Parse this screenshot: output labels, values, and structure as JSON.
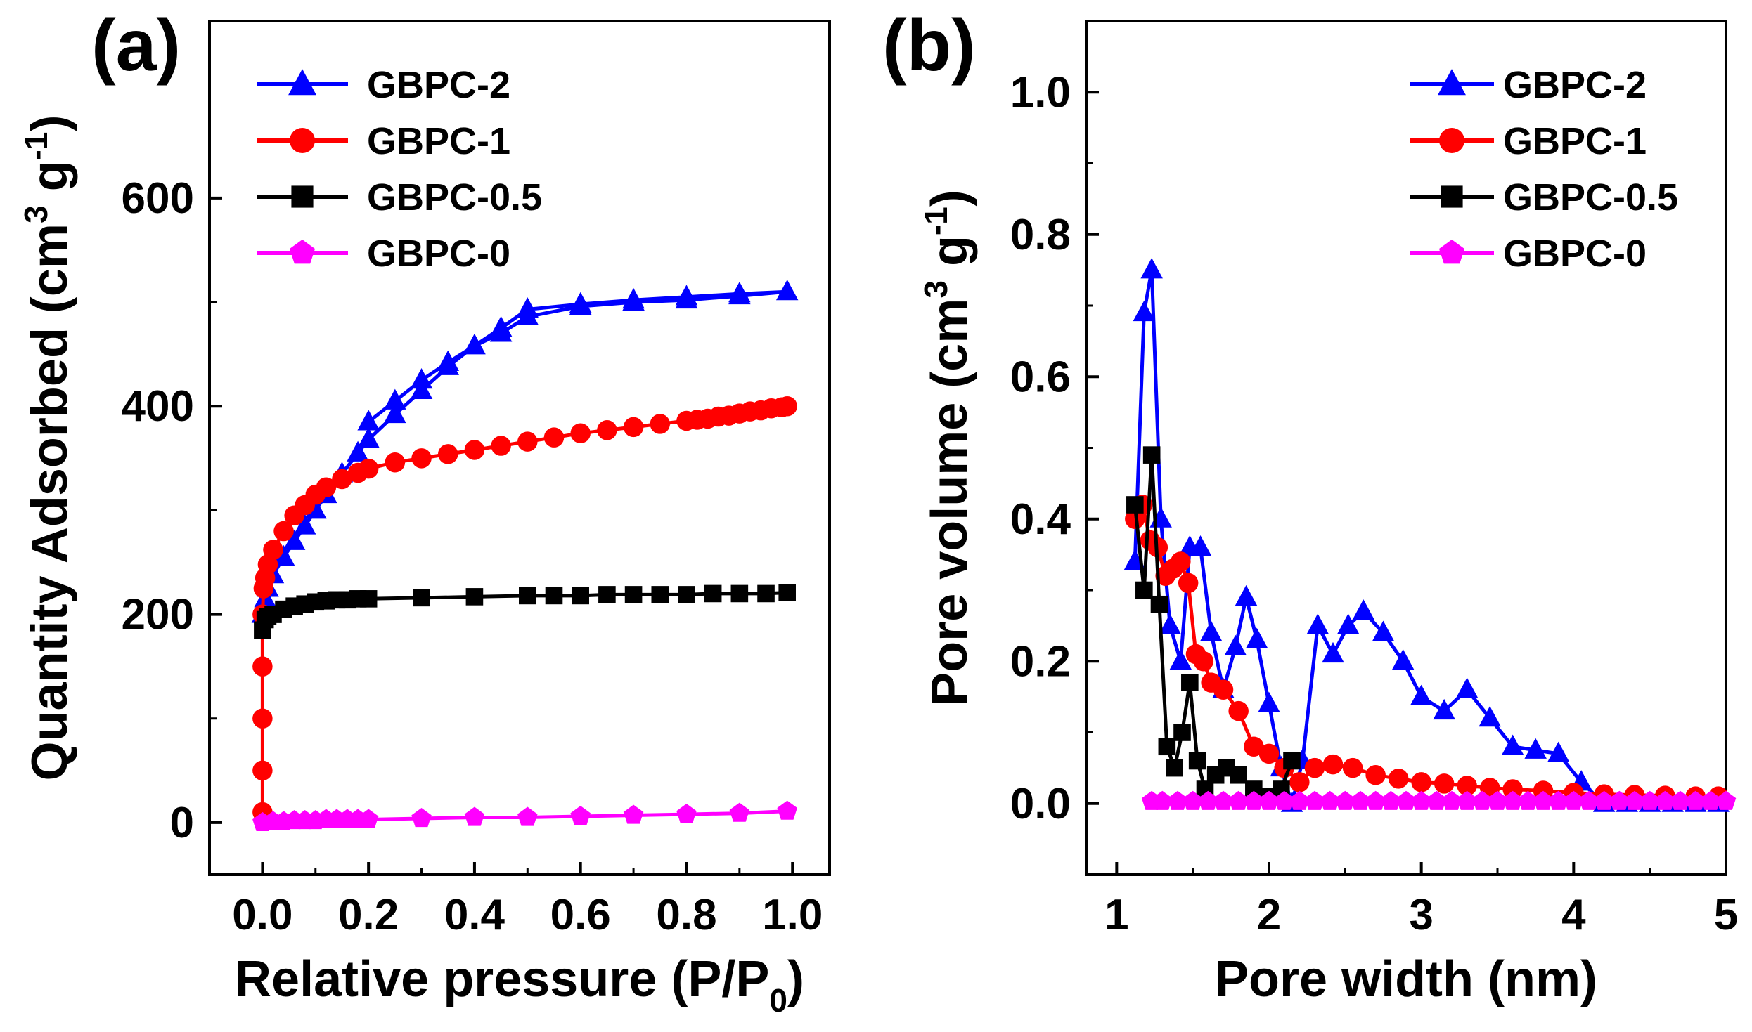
{
  "chart_data": [
    {
      "type": "line",
      "panel_label": "(a)",
      "title": "",
      "xlabel": "Relative pressure (P/P",
      "xlabel_sub": "0",
      "xlabel_end": ")",
      "ylabel": "Quantity Adsorbed (cm",
      "ylabel_sup1": "3",
      "ylabel_mid": " g",
      "ylabel_sup2": "-1",
      "ylabel_end": ")",
      "xlim": [
        -0.1,
        1.07
      ],
      "ylim": [
        -50,
        770
      ],
      "xticks": [
        0.0,
        0.2,
        0.4,
        0.6,
        0.8,
        1.0
      ],
      "xtick_labels": [
        "0.0",
        "0.2",
        "0.4",
        "0.6",
        "0.8",
        "1.0"
      ],
      "yticks": [
        0,
        200,
        400,
        600
      ],
      "ytick_labels": [
        "0",
        "200",
        "400",
        "600"
      ],
      "legend_position": "top-left",
      "series": [
        {
          "name": "GBPC-2",
          "color": "#0000ff",
          "marker": "triangle",
          "x": [
            0.0,
            0.005,
            0.01,
            0.02,
            0.04,
            0.06,
            0.08,
            0.1,
            0.12,
            0.15,
            0.18,
            0.2,
            0.25,
            0.3,
            0.35,
            0.4,
            0.45,
            0.5,
            0.6,
            0.7,
            0.8,
            0.9,
            0.99,
            0.9,
            0.8,
            0.7,
            0.6,
            0.5,
            0.45,
            0.4,
            0.35,
            0.3,
            0.25,
            0.2
          ],
          "y": [
            200,
            215,
            225,
            238,
            255,
            270,
            285,
            300,
            315,
            335,
            355,
            368,
            392,
            415,
            438,
            458,
            475,
            493,
            498,
            502,
            505,
            508,
            510,
            506,
            502,
            500,
            496,
            486,
            470,
            458,
            442,
            425,
            405,
            385
          ]
        },
        {
          "name": "GBPC-1",
          "color": "#ff0000",
          "marker": "circle",
          "x": [
            0.0,
            0.0,
            0.0,
            0.0,
            0.0,
            0.002,
            0.005,
            0.01,
            0.02,
            0.04,
            0.06,
            0.08,
            0.1,
            0.12,
            0.15,
            0.18,
            0.2,
            0.25,
            0.3,
            0.35,
            0.4,
            0.45,
            0.5,
            0.55,
            0.6,
            0.65,
            0.7,
            0.75,
            0.8,
            0.82,
            0.84,
            0.86,
            0.88,
            0.9,
            0.92,
            0.94,
            0.96,
            0.98,
            0.99
          ],
          "y": [
            10,
            50,
            100,
            150,
            200,
            225,
            235,
            248,
            262,
            280,
            295,
            305,
            315,
            322,
            330,
            336,
            340,
            346,
            350,
            354,
            358,
            362,
            366,
            370,
            374,
            377,
            380,
            383,
            386,
            387,
            388,
            390,
            391,
            393,
            395,
            396,
            398,
            399,
            400
          ]
        },
        {
          "name": "GBPC-0.5",
          "color": "#000000",
          "marker": "square",
          "x": [
            0.0,
            0.005,
            0.01,
            0.02,
            0.04,
            0.06,
            0.08,
            0.1,
            0.12,
            0.14,
            0.16,
            0.18,
            0.2,
            0.3,
            0.4,
            0.5,
            0.55,
            0.6,
            0.65,
            0.7,
            0.75,
            0.8,
            0.85,
            0.9,
            0.95,
            0.99
          ],
          "y": [
            185,
            195,
            198,
            200,
            205,
            208,
            210,
            212,
            213,
            214,
            214,
            215,
            215,
            216,
            217,
            218,
            218,
            218,
            219,
            219,
            219,
            219,
            220,
            220,
            220,
            221
          ]
        },
        {
          "name": "GBPC-0",
          "color": "#ff00ff",
          "marker": "pentagon",
          "x": [
            0.0,
            0.02,
            0.04,
            0.06,
            0.08,
            0.1,
            0.12,
            0.14,
            0.16,
            0.18,
            0.2,
            0.3,
            0.4,
            0.5,
            0.6,
            0.7,
            0.8,
            0.9,
            0.99
          ],
          "y": [
            0,
            1,
            1,
            2,
            2,
            2,
            3,
            3,
            3,
            3,
            3,
            4,
            5,
            5,
            6,
            7,
            8,
            9,
            11
          ]
        }
      ]
    },
    {
      "type": "line",
      "panel_label": "(b)",
      "title": "",
      "xlabel": "Pore width (nm)",
      "ylabel": "Pore volume (cm",
      "ylabel_sup1": "3",
      "ylabel_mid": " g",
      "ylabel_sup2": "-1",
      "ylabel_end": ")",
      "xlim": [
        0.8,
        5.0
      ],
      "ylim": [
        -0.1,
        1.1
      ],
      "xticks": [
        1,
        2,
        3,
        4,
        5
      ],
      "xtick_labels": [
        "1",
        "2",
        "3",
        "4",
        "5"
      ],
      "yticks": [
        0.0,
        0.2,
        0.4,
        0.6,
        0.8,
        1.0
      ],
      "ytick_labels": [
        "0.0",
        "0.2",
        "0.4",
        "0.6",
        "0.8",
        "1.0"
      ],
      "legend_position": "top-right",
      "series": [
        {
          "name": "GBPC-2",
          "color": "#0000ff",
          "marker": "triangle",
          "x": [
            1.12,
            1.18,
            1.23,
            1.29,
            1.35,
            1.42,
            1.48,
            1.55,
            1.62,
            1.7,
            1.78,
            1.85,
            1.92,
            2.0,
            2.08,
            2.15,
            2.22,
            2.32,
            2.42,
            2.52,
            2.62,
            2.75,
            2.88,
            3.0,
            3.15,
            3.3,
            3.45,
            3.6,
            3.75,
            3.9,
            4.05,
            4.2,
            4.35,
            4.5,
            4.65,
            4.8,
            4.95
          ],
          "y": [
            0.34,
            0.69,
            0.75,
            0.4,
            0.25,
            0.2,
            0.36,
            0.36,
            0.24,
            0.16,
            0.22,
            0.29,
            0.23,
            0.14,
            0.05,
            0.0,
            0.06,
            0.25,
            0.21,
            0.25,
            0.27,
            0.24,
            0.2,
            0.15,
            0.13,
            0.16,
            0.12,
            0.08,
            0.075,
            0.07,
            0.03,
            0.0,
            0.0,
            0.0,
            0.0,
            0.0,
            0.0
          ]
        },
        {
          "name": "GBPC-1",
          "color": "#ff0000",
          "marker": "circle",
          "x": [
            1.12,
            1.17,
            1.22,
            1.27,
            1.32,
            1.37,
            1.42,
            1.47,
            1.52,
            1.57,
            1.62,
            1.7,
            1.8,
            1.9,
            2.0,
            2.1,
            2.2,
            2.3,
            2.42,
            2.55,
            2.7,
            2.85,
            3.0,
            3.15,
            3.3,
            3.45,
            3.6,
            3.8,
            4.0,
            4.2,
            4.4,
            4.6,
            4.8,
            4.95
          ],
          "y": [
            0.4,
            0.42,
            0.37,
            0.36,
            0.32,
            0.33,
            0.34,
            0.31,
            0.21,
            0.2,
            0.17,
            0.16,
            0.13,
            0.08,
            0.07,
            0.05,
            0.03,
            0.05,
            0.055,
            0.05,
            0.04,
            0.035,
            0.03,
            0.028,
            0.025,
            0.022,
            0.02,
            0.018,
            0.015,
            0.013,
            0.012,
            0.011,
            0.01,
            0.01
          ]
        },
        {
          "name": "GBPC-0.5",
          "color": "#000000",
          "marker": "square",
          "x": [
            1.12,
            1.18,
            1.23,
            1.28,
            1.33,
            1.38,
            1.43,
            1.48,
            1.53,
            1.58,
            1.65,
            1.72,
            1.8,
            1.9,
            2.0,
            2.08,
            2.15
          ],
          "y": [
            0.42,
            0.3,
            0.49,
            0.28,
            0.08,
            0.05,
            0.1,
            0.17,
            0.06,
            0.02,
            0.04,
            0.05,
            0.04,
            0.02,
            0.01,
            0.02,
            0.06
          ]
        },
        {
          "name": "GBPC-0",
          "color": "#ff00ff",
          "marker": "pentagon",
          "x": [
            1.23,
            1.3,
            1.4,
            1.5,
            1.6,
            1.7,
            1.8,
            1.9,
            2.0,
            2.1,
            2.2,
            2.3,
            2.4,
            2.5,
            2.6,
            2.7,
            2.8,
            2.9,
            3.0,
            3.1,
            3.2,
            3.3,
            3.4,
            3.5,
            3.6,
            3.7,
            3.8,
            3.9,
            4.0,
            4.1,
            4.2,
            4.3,
            4.4,
            4.5,
            4.6,
            4.7,
            4.8,
            4.9,
            5.0
          ],
          "y": [
            0.003,
            0.003,
            0.003,
            0.003,
            0.003,
            0.003,
            0.003,
            0.003,
            0.003,
            0.003,
            0.003,
            0.003,
            0.003,
            0.003,
            0.003,
            0.003,
            0.003,
            0.003,
            0.003,
            0.003,
            0.003,
            0.003,
            0.003,
            0.003,
            0.003,
            0.003,
            0.003,
            0.003,
            0.003,
            0.003,
            0.003,
            0.003,
            0.003,
            0.003,
            0.003,
            0.003,
            0.003,
            0.003,
            0.003
          ]
        }
      ]
    }
  ]
}
